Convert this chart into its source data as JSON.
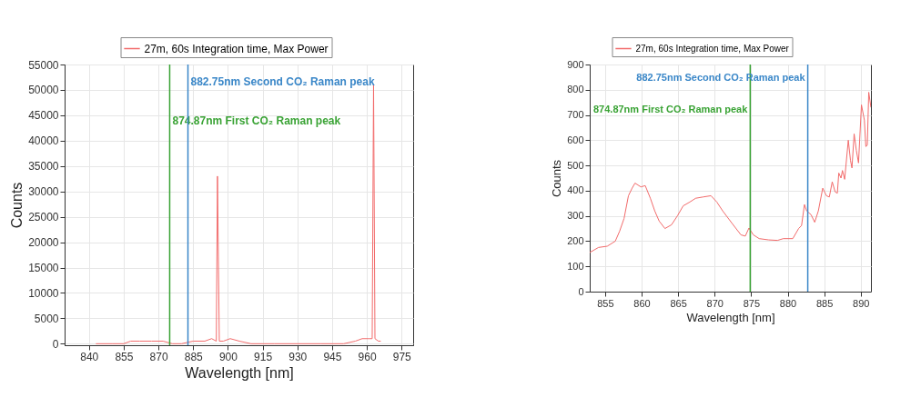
{
  "chart_data": [
    {
      "type": "line",
      "xlabel": "Wavelength [nm]",
      "ylabel": "Counts",
      "legend": "top",
      "grid": true,
      "xlim": [
        829.5,
        980
      ],
      "xticks": [
        840,
        855,
        870,
        885,
        900,
        915,
        930,
        945,
        960,
        975
      ],
      "ylim": [
        -300,
        55000
      ],
      "yticks": [
        0,
        5000,
        10000,
        15000,
        20000,
        25000,
        30000,
        35000,
        40000,
        45000,
        50000,
        55000
      ],
      "series": [
        {
          "name": "27m, 60s Integration time, Max Power",
          "color": "#f26b6b",
          "x": [
            843,
            850,
            855,
            858,
            862,
            867,
            872,
            876,
            880,
            885,
            890,
            893,
            895,
            895.5,
            896.3,
            898,
            901,
            905,
            910,
            920,
            940,
            950,
            955,
            958,
            960,
            961,
            962.3,
            962.9,
            963.5,
            965,
            966
          ],
          "values": [
            0,
            0,
            0,
            500,
            500,
            500,
            500,
            0,
            0,
            500,
            500,
            1000,
            500,
            33000,
            500,
            500,
            1000,
            500,
            0,
            0,
            0,
            0,
            500,
            1000,
            1000,
            1000,
            1000,
            51000,
            1000,
            500,
            500
          ]
        }
      ],
      "ref_lines": [
        {
          "axis": "x",
          "value": 874.87,
          "label": "874.87nm First CO₂ Raman peak",
          "color": "#3aa335"
        },
        {
          "axis": "x",
          "value": 882.75,
          "label": "882.75nm Second CO₂ Raman peak",
          "color": "#3a87c8"
        }
      ]
    },
    {
      "type": "line",
      "xlabel": "Wavelength [nm]",
      "ylabel": "Counts",
      "legend": "top",
      "grid": true,
      "xlim": [
        852.9,
        891.4
      ],
      "xticks": [
        855,
        860,
        865,
        870,
        875,
        880,
        885,
        890
      ],
      "ylim": [
        0,
        900
      ],
      "yticks": [
        0,
        100,
        200,
        300,
        400,
        500,
        600,
        700,
        800,
        900
      ],
      "series": [
        {
          "name": "27m, 60s Integration time, Max Power",
          "color": "#f26b6b",
          "x": [
            852.9,
            854.1,
            855.3,
            856.4,
            857.0,
            857.6,
            858.2,
            858.7,
            859.1,
            859.9,
            860.5,
            861.2,
            861.8,
            862.4,
            863.2,
            864.1,
            864.9,
            865.7,
            866.6,
            867.4,
            868.4,
            869.5,
            870.3,
            871.1,
            872.4,
            873.6,
            874.2,
            874.7,
            875.3,
            876.1,
            877.4,
            878.6,
            879.4,
            880.7,
            881.5,
            881.9,
            882.3,
            882.6,
            883.2,
            883.7,
            884.2,
            884.8,
            885.3,
            885.7,
            886.1,
            886.5,
            886.8,
            887.0,
            887.3,
            887.5,
            887.8,
            888.3,
            888.6,
            888.8,
            889.1,
            889.4,
            889.7,
            890.1,
            890.5,
            890.7,
            890.9,
            891.1,
            891.4
          ],
          "values": [
            155,
            175,
            180,
            200,
            240,
            290,
            380,
            410,
            430,
            415,
            420,
            370,
            320,
            280,
            250,
            265,
            300,
            340,
            355,
            370,
            375,
            380,
            355,
            320,
            270,
            225,
            220,
            252,
            225,
            210,
            205,
            203,
            210,
            210,
            250,
            262,
            345,
            320,
            305,
            275,
            320,
            410,
            380,
            375,
            435,
            395,
            390,
            470,
            450,
            480,
            445,
            600,
            520,
            490,
            625,
            560,
            510,
            740,
            680,
            575,
            580,
            790,
            730
          ]
        }
      ],
      "ref_lines": [
        {
          "axis": "x",
          "value": 874.87,
          "label": "874.87nm First CO₂ Raman peak",
          "color": "#3aa335"
        },
        {
          "axis": "x",
          "value": 882.75,
          "label": "882.75nm Second CO₂ Raman peak",
          "color": "#3a87c8"
        }
      ]
    }
  ]
}
